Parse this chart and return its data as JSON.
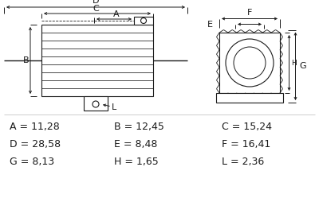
{
  "bg_color": "#ffffff",
  "line_color": "#1a1a1a",
  "text_color": "#1a1a1a",
  "dim_rows": [
    [
      "A = 11,28",
      "B = 12,45",
      "C = 15,24"
    ],
    [
      "D = 28,58",
      "E = 8,48",
      "F = 16,41"
    ],
    [
      "G = 8,13",
      "H = 1,65",
      "L = 2,36"
    ]
  ],
  "fontsize_dim": 9
}
